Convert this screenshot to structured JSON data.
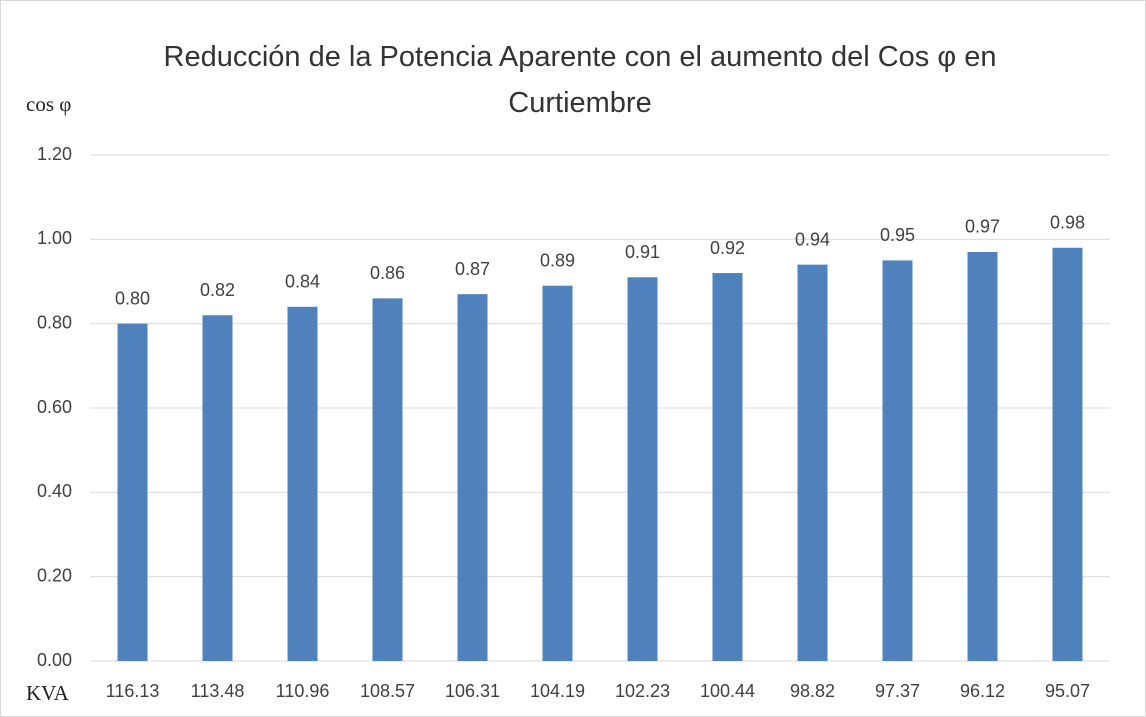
{
  "chart_data": {
    "type": "bar",
    "title": "Reducción de la Potencia Aparente con el aumento del Cos φ en Curtiembre",
    "y_label": "cos φ",
    "x_label": "KVA",
    "categories": [
      "116.13",
      "113.48",
      "110.96",
      "108.57",
      "106.31",
      "104.19",
      "102.23",
      "100.44",
      "98.82",
      "97.37",
      "96.12",
      "95.07"
    ],
    "values": [
      0.8,
      0.82,
      0.84,
      0.86,
      0.87,
      0.89,
      0.91,
      0.92,
      0.94,
      0.95,
      0.97,
      0.98
    ],
    "value_labels": [
      "0.80",
      "0.82",
      "0.84",
      "0.86",
      "0.87",
      "0.89",
      "0.91",
      "0.92",
      "0.94",
      "0.95",
      "0.97",
      "0.98"
    ],
    "color": "#4f81bd",
    "ylim": [
      0,
      1.2
    ],
    "yticks": [
      {
        "value": 0,
        "label": "0.00"
      },
      {
        "value": 0.2,
        "label": "0.20"
      },
      {
        "value": 0.4,
        "label": "0.40"
      },
      {
        "value": 0.6,
        "label": "0.60"
      },
      {
        "value": 0.8,
        "label": "0.80"
      },
      {
        "value": 1,
        "label": "1.00"
      },
      {
        "value": 1.2,
        "label": "1.20"
      }
    ],
    "grid": true
  }
}
